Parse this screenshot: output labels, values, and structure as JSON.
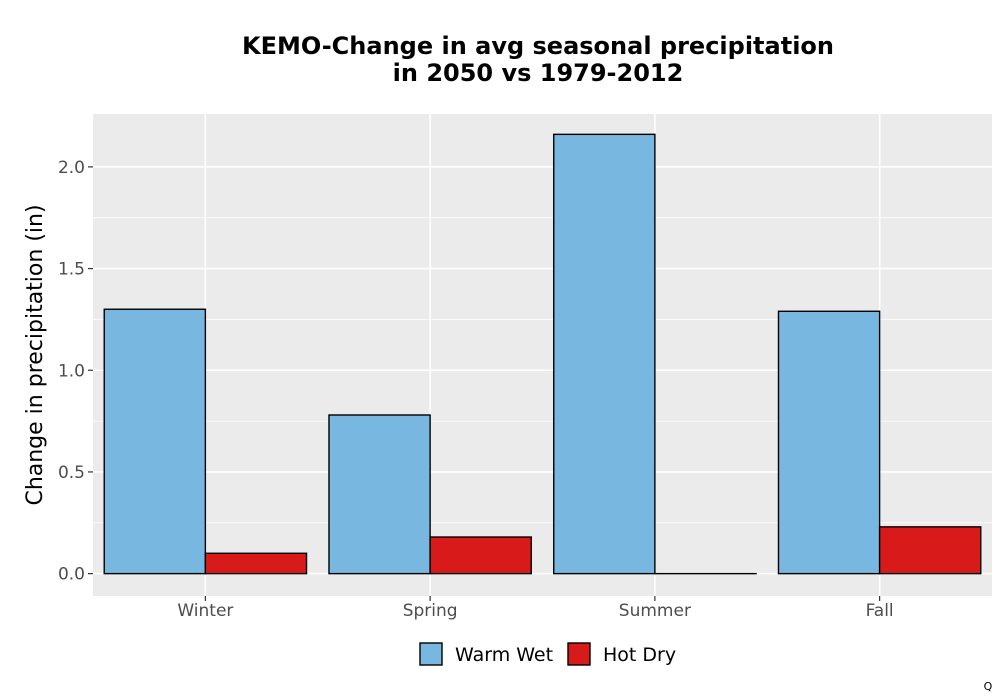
{
  "chart_data": {
    "type": "bar",
    "title_lines": [
      "KEMO-Change in avg seasonal precipitation",
      "in 2050 vs 1979-2012"
    ],
    "xlabel": "",
    "ylabel": "Change in precipitation (in)",
    "categories": [
      "Winter",
      "Spring",
      "Summer",
      "Fall"
    ],
    "series": [
      {
        "name": "Warm Wet",
        "color": "#77b7e0",
        "values": [
          1.3,
          0.78,
          2.16,
          1.29
        ]
      },
      {
        "name": "Hot Dry",
        "color": "#d91a1a",
        "values": [
          0.1,
          0.18,
          0.0,
          0.23
        ]
      }
    ],
    "ylim": [
      -0.11,
      2.26
    ],
    "yticks": [
      0.0,
      0.5,
      1.0,
      1.5,
      2.0
    ],
    "ytick_labels": [
      "0.0",
      "0.5",
      "1.0",
      "1.5",
      "2.0"
    ],
    "grid": true,
    "panel_background": "#ebebeb",
    "legend_position": "bottom",
    "corner_mark": "Q"
  }
}
